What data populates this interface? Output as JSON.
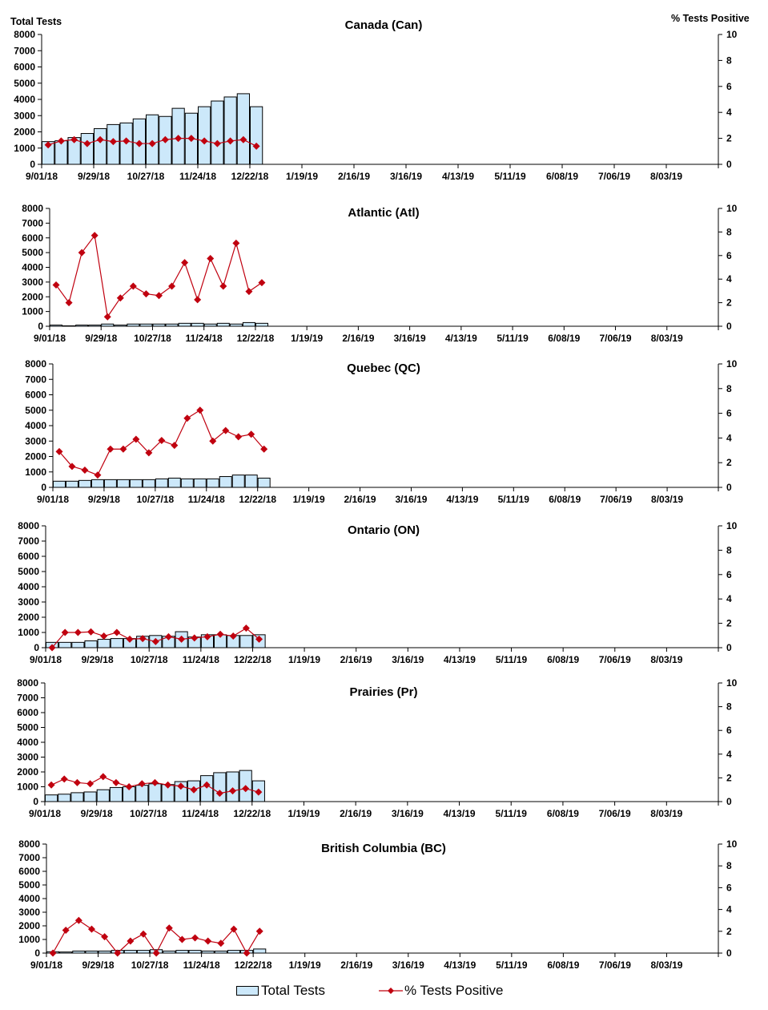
{
  "chart_data": {
    "type": "bar+line",
    "left_axis_label": "Total Tests",
    "right_axis_label": "% Tests Positive",
    "left_ylim": [
      0,
      8000
    ],
    "left_ticks": [
      "0",
      "1000",
      "2000",
      "3000",
      "4000",
      "5000",
      "6000",
      "7000",
      "8000"
    ],
    "right_ylim": [
      0,
      10
    ],
    "right_ticks": [
      "0",
      "2",
      "4",
      "6",
      "8",
      "10"
    ],
    "x_tick_labels": [
      "9/01/18",
      "9/29/18",
      "10/27/18",
      "11/24/18",
      "12/22/18",
      "1/19/19",
      "2/16/19",
      "3/16/19",
      "4/13/19",
      "5/11/19",
      "6/08/19",
      "7/06/19",
      "8/03/19"
    ],
    "weeks": [
      "9/01/18",
      "9/08/18",
      "9/15/18",
      "9/22/18",
      "9/29/18",
      "10/06/18",
      "10/13/18",
      "10/20/18",
      "10/27/18",
      "11/03/18",
      "11/10/18",
      "11/17/18",
      "11/24/18",
      "12/01/18",
      "12/08/18",
      "12/15/18",
      "12/22/18"
    ],
    "colors": {
      "bars": "#cce8fa",
      "bar_edge": "#000000",
      "line": "#c0000f"
    },
    "legend": {
      "bars": "Total Tests",
      "line": "% Tests Positive",
      "position": "bottom"
    },
    "panels": [
      {
        "title": "Canada (Can)",
        "total_tests": [
          1400,
          1450,
          1650,
          1900,
          2200,
          2450,
          2550,
          2800,
          3050,
          2950,
          3450,
          3150,
          3550,
          3900,
          4150,
          4350,
          3550
        ],
        "pct_positive": [
          1.5,
          1.8,
          1.9,
          1.6,
          1.9,
          1.75,
          1.8,
          1.6,
          1.6,
          1.9,
          2.0,
          2.0,
          1.8,
          1.6,
          1.8,
          1.9,
          1.4
        ]
      },
      {
        "title": "Atlantic (Atl)",
        "total_tests": [
          80,
          30,
          80,
          80,
          150,
          80,
          150,
          150,
          150,
          150,
          200,
          200,
          150,
          200,
          150,
          250,
          200
        ],
        "pct_positive": [
          3.5,
          2.0,
          6.25,
          7.7,
          0.8,
          2.4,
          3.4,
          2.75,
          2.6,
          3.4,
          5.4,
          2.25,
          5.75,
          3.4,
          7.05,
          2.95,
          3.7
        ]
      },
      {
        "title": "Quebec (QC)",
        "total_tests": [
          400,
          400,
          450,
          500,
          500,
          500,
          500,
          500,
          550,
          600,
          550,
          550,
          550,
          700,
          800,
          800,
          600
        ],
        "pct_positive": [
          2.9,
          1.7,
          1.4,
          1.0,
          3.1,
          3.1,
          3.9,
          2.8,
          3.8,
          3.4,
          5.6,
          6.25,
          3.75,
          4.6,
          4.1,
          4.3,
          3.1
        ]
      },
      {
        "title": "Ontario (ON)",
        "total_tests": [
          350,
          350,
          350,
          450,
          550,
          600,
          600,
          750,
          800,
          750,
          1050,
          700,
          850,
          850,
          800,
          800,
          850
        ],
        "pct_positive": [
          0,
          1.25,
          1.25,
          1.3,
          0.95,
          1.25,
          0.7,
          0.75,
          0.5,
          0.9,
          0.7,
          0.8,
          0.9,
          1.1,
          0.95,
          1.6,
          0.7
        ]
      },
      {
        "title": "Prairies (Pr)",
        "total_tests": [
          450,
          500,
          600,
          650,
          800,
          950,
          1000,
          1100,
          1200,
          1150,
          1350,
          1400,
          1750,
          1950,
          2000,
          2100,
          1400
        ],
        "pct_positive": [
          1.4,
          1.9,
          1.6,
          1.5,
          2.1,
          1.6,
          1.25,
          1.5,
          1.6,
          1.4,
          1.3,
          1.0,
          1.4,
          0.7,
          0.9,
          1.1,
          0.8
        ]
      },
      {
        "title": "British Columbia (BC)",
        "total_tests": [
          100,
          80,
          150,
          150,
          150,
          200,
          200,
          200,
          250,
          150,
          200,
          200,
          150,
          150,
          200,
          200,
          300
        ],
        "pct_positive": [
          0,
          2.1,
          3.0,
          2.2,
          1.5,
          0,
          1.1,
          1.75,
          0,
          2.3,
          1.25,
          1.4,
          1.1,
          0.9,
          2.2,
          0,
          2.0
        ]
      }
    ]
  }
}
